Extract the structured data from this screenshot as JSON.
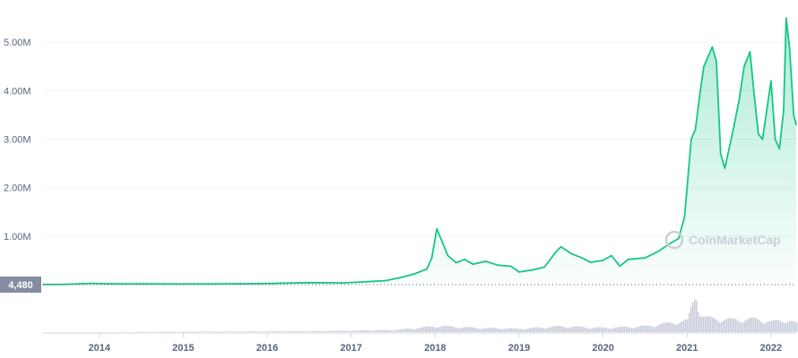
{
  "watermark": "CoinMarketCap",
  "colors": {
    "line": "#16c784",
    "grid": "#eff2f5",
    "axis_text": "#58667e",
    "volume": "#c7cbd8",
    "label_bg": "#858ca2"
  },
  "chart_data": {
    "type": "line",
    "title": "",
    "xlabel": "",
    "ylabel": "",
    "ylim": [
      0,
      5500000
    ],
    "y_ticks": [
      "1.00M",
      "2.00M",
      "3.00M",
      "4.00M",
      "5.00M"
    ],
    "x_ticks": [
      "2014",
      "2015",
      "2016",
      "2017",
      "2018",
      "2019",
      "2020",
      "2021",
      "2022"
    ],
    "current_value_label": "4,480",
    "grid": true,
    "legend": "none",
    "series": [
      {
        "x": [
          2013.33,
          2013.6,
          2013.9,
          2014.2,
          2014.6,
          2015.0,
          2015.5,
          2016.0,
          2016.5,
          2016.9,
          2017.2,
          2017.4,
          2017.6,
          2017.75,
          2017.9,
          2017.96,
          2018.02,
          2018.08,
          2018.15,
          2018.25,
          2018.35,
          2018.45,
          2018.6,
          2018.75,
          2018.9,
          2019.0,
          2019.15,
          2019.3,
          2019.45,
          2019.5,
          2019.62,
          2019.75,
          2019.85,
          2020.0,
          2020.1,
          2020.2,
          2020.3,
          2020.5,
          2020.65,
          2020.8,
          2020.9,
          2020.97,
          2021.0,
          2021.05,
          2021.1,
          2021.15,
          2021.2,
          2021.25,
          2021.3,
          2021.35,
          2021.4,
          2021.45,
          2021.55,
          2021.62,
          2021.68,
          2021.75,
          2021.8,
          2021.85,
          2021.9,
          2021.95,
          2022.0,
          2022.05,
          2022.1,
          2022.15,
          2022.18,
          2022.22,
          2022.27,
          2022.3
        ],
        "values": [
          4480,
          6000,
          25000,
          15000,
          14000,
          13000,
          15000,
          22000,
          40000,
          35000,
          60000,
          80000,
          150000,
          220000,
          320000,
          550000,
          1150000,
          900000,
          600000,
          450000,
          520000,
          420000,
          480000,
          400000,
          380000,
          260000,
          300000,
          360000,
          700000,
          780000,
          640000,
          550000,
          460000,
          500000,
          600000,
          380000,
          520000,
          550000,
          680000,
          850000,
          950000,
          1400000,
          2000000,
          3000000,
          3200000,
          3900000,
          4500000,
          4700000,
          4900000,
          4600000,
          2700000,
          2400000,
          3200000,
          3800000,
          4500000,
          4800000,
          3900000,
          3100000,
          3000000,
          3600000,
          4200000,
          3000000,
          2800000,
          3600000,
          5500000,
          4900000,
          3500000,
          3300000
        ]
      }
    ],
    "volume": {
      "x": [
        2013.33,
        2016.5,
        2017.5,
        2017.9,
        2018.0,
        2018.5,
        2019.0,
        2019.5,
        2020.0,
        2020.5,
        2021.0,
        2021.1,
        2021.15,
        2021.2,
        2021.5,
        2021.8,
        2022.0,
        2022.2,
        2022.3
      ],
      "values": [
        0,
        0.02,
        0.05,
        0.12,
        0.15,
        0.1,
        0.08,
        0.14,
        0.1,
        0.14,
        0.28,
        1.0,
        0.45,
        0.35,
        0.3,
        0.32,
        0.25,
        0.3,
        0.2
      ]
    }
  }
}
